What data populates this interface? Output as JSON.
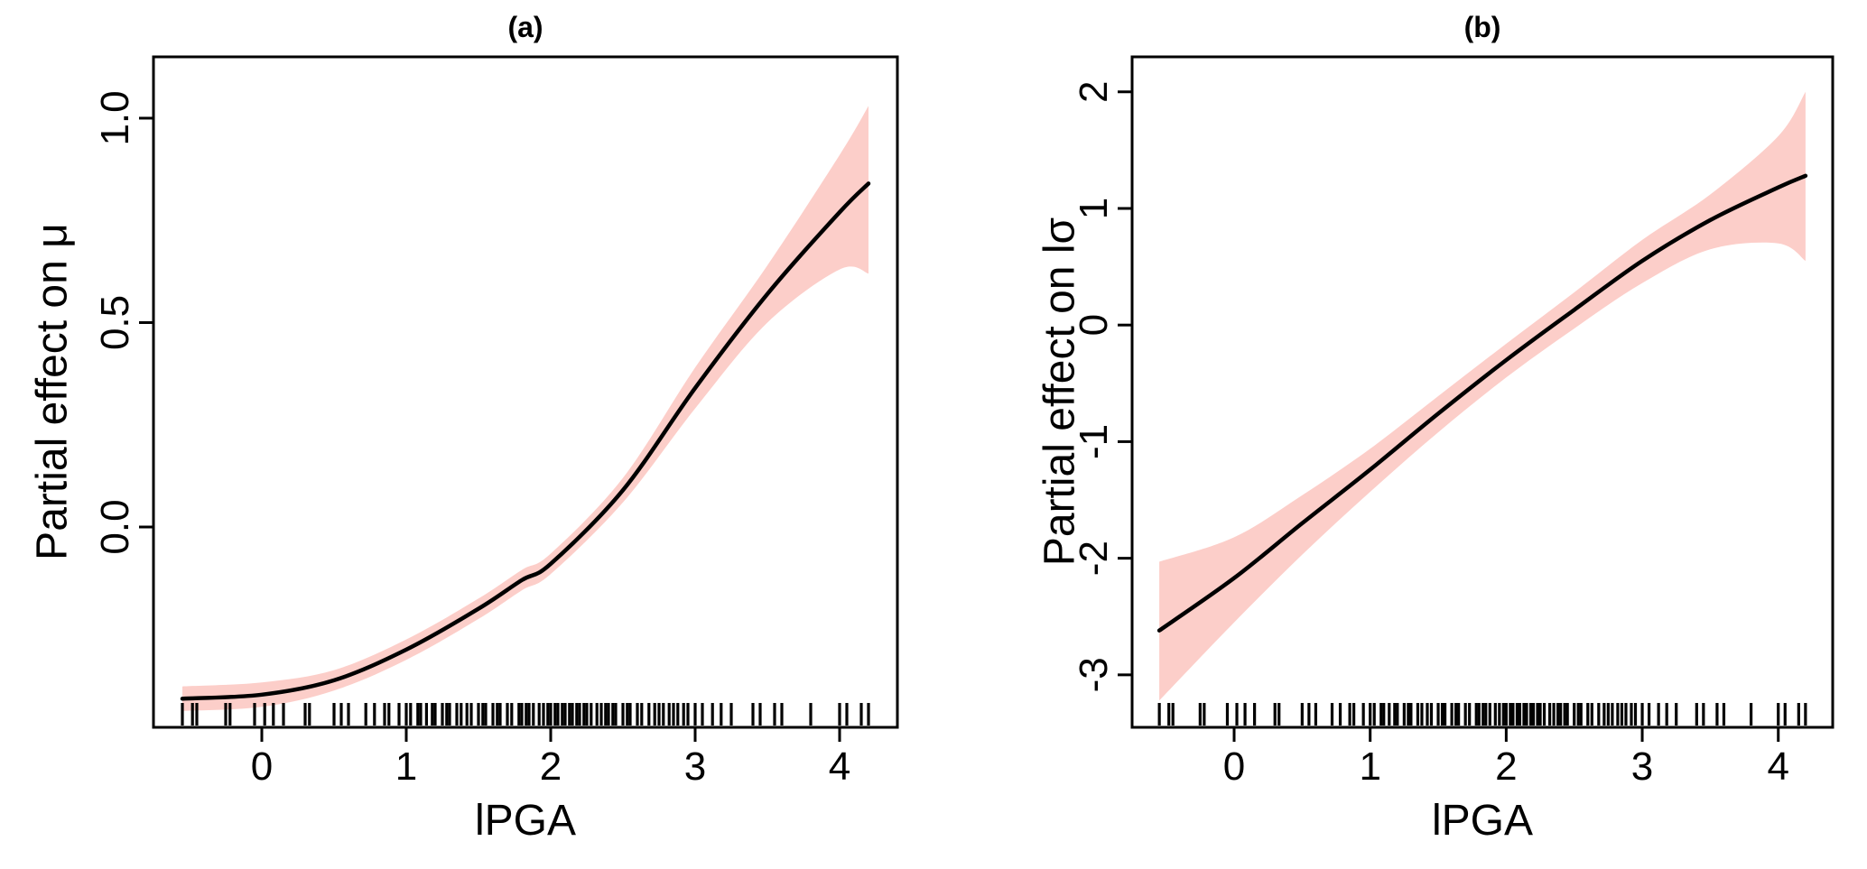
{
  "figure": {
    "background": "#FFFFFF"
  },
  "chart_data": [
    {
      "type": "line",
      "panel": "a",
      "title": "(a)",
      "xlabel": "lPGA",
      "ylabel": "Partial effect on μ",
      "line_color": "#000000",
      "band_color": "#FCCEC9",
      "grid": "off",
      "legend": "none",
      "xlim": [
        -0.75,
        4.4
      ],
      "ylim": [
        -0.49,
        1.15
      ],
      "xticks": [
        0,
        1,
        2,
        3,
        4
      ],
      "xtick_labels": [
        "0",
        "1",
        "2",
        "3",
        "4"
      ],
      "yticks": [
        0,
        0.5,
        1
      ],
      "ytick_labels": [
        "0.0",
        "0.5",
        "1.0"
      ],
      "x": [
        -0.55,
        0,
        0.5,
        1.0,
        1.5,
        1.8,
        2.0,
        2.5,
        3.0,
        3.5,
        4.0,
        4.2
      ],
      "fit": [
        -0.42,
        -0.41,
        -0.375,
        -0.3,
        -0.2,
        -0.13,
        -0.09,
        0.09,
        0.34,
        0.57,
        0.77,
        0.84
      ],
      "lower": [
        -0.45,
        -0.44,
        -0.4,
        -0.325,
        -0.225,
        -0.155,
        -0.115,
        0.06,
        0.29,
        0.5,
        0.63,
        0.62
      ],
      "upper": [
        -0.39,
        -0.38,
        -0.35,
        -0.275,
        -0.175,
        -0.105,
        -0.065,
        0.12,
        0.39,
        0.64,
        0.91,
        1.03
      ],
      "rug_x": [
        -0.55,
        -0.48,
        -0.45,
        -0.25,
        -0.22,
        -0.05,
        0.02,
        0.08,
        0.15,
        0.3,
        0.33,
        0.5,
        0.55,
        0.6,
        0.72,
        0.78,
        0.85,
        0.88,
        0.95,
        1.0,
        1.03,
        1.08,
        1.1,
        1.14,
        1.18,
        1.2,
        1.25,
        1.28,
        1.3,
        1.35,
        1.38,
        1.42,
        1.45,
        1.5,
        1.53,
        1.55,
        1.6,
        1.63,
        1.65,
        1.7,
        1.73,
        1.78,
        1.8,
        1.83,
        1.85,
        1.88,
        1.92,
        1.95,
        1.98,
        2.0,
        2.03,
        2.05,
        2.08,
        2.1,
        2.13,
        2.15,
        2.18,
        2.2,
        2.23,
        2.25,
        2.28,
        2.32,
        2.35,
        2.38,
        2.4,
        2.43,
        2.45,
        2.5,
        2.53,
        2.55,
        2.6,
        2.63,
        2.68,
        2.72,
        2.75,
        2.78,
        2.82,
        2.85,
        2.88,
        2.92,
        2.95,
        3.0,
        3.05,
        3.12,
        3.18,
        3.25,
        3.4,
        3.45,
        3.55,
        3.6,
        3.8,
        4.0,
        4.05,
        4.15,
        4.2
      ]
    },
    {
      "type": "line",
      "panel": "b",
      "title": "(b)",
      "xlabel": "lPGA",
      "ylabel": "Partial effect on lσ",
      "line_color": "#000000",
      "band_color": "#FCCEC9",
      "grid": "off",
      "legend": "none",
      "xlim": [
        -0.75,
        4.4
      ],
      "ylim": [
        -3.45,
        2.3
      ],
      "xticks": [
        0,
        1,
        2,
        3,
        4
      ],
      "xtick_labels": [
        "0",
        "1",
        "2",
        "3",
        "4"
      ],
      "yticks": [
        -3,
        -2,
        -1,
        0,
        1,
        2
      ],
      "ytick_labels": [
        "-3",
        "-2",
        "-1",
        "0",
        "1",
        "2"
      ],
      "x": [
        -0.55,
        0,
        0.5,
        1.0,
        1.5,
        2.0,
        2.5,
        3.0,
        3.5,
        4.0,
        4.2
      ],
      "fit": [
        -2.62,
        -2.17,
        -1.7,
        -1.24,
        -0.76,
        -0.3,
        0.13,
        0.55,
        0.9,
        1.18,
        1.28
      ],
      "lower": [
        -3.22,
        -2.55,
        -1.97,
        -1.43,
        -0.92,
        -0.45,
        -0.03,
        0.36,
        0.65,
        0.7,
        0.55
      ],
      "upper": [
        -2.03,
        -1.82,
        -1.46,
        -1.06,
        -0.61,
        -0.16,
        0.28,
        0.73,
        1.12,
        1.62,
        2.0
      ],
      "rug_x": [
        -0.55,
        -0.48,
        -0.45,
        -0.25,
        -0.22,
        -0.05,
        0.02,
        0.08,
        0.15,
        0.3,
        0.33,
        0.5,
        0.55,
        0.6,
        0.72,
        0.78,
        0.85,
        0.88,
        0.95,
        1.0,
        1.03,
        1.08,
        1.1,
        1.14,
        1.18,
        1.2,
        1.25,
        1.28,
        1.3,
        1.35,
        1.38,
        1.42,
        1.45,
        1.5,
        1.53,
        1.55,
        1.6,
        1.63,
        1.65,
        1.7,
        1.73,
        1.78,
        1.8,
        1.83,
        1.85,
        1.88,
        1.92,
        1.95,
        1.98,
        2.0,
        2.03,
        2.05,
        2.08,
        2.1,
        2.13,
        2.15,
        2.18,
        2.2,
        2.23,
        2.25,
        2.28,
        2.32,
        2.35,
        2.38,
        2.4,
        2.43,
        2.45,
        2.5,
        2.53,
        2.55,
        2.6,
        2.63,
        2.68,
        2.72,
        2.75,
        2.78,
        2.82,
        2.85,
        2.88,
        2.92,
        2.95,
        3.0,
        3.05,
        3.12,
        3.18,
        3.25,
        3.4,
        3.45,
        3.55,
        3.6,
        3.8,
        4.0,
        4.05,
        4.15,
        4.2
      ]
    }
  ]
}
